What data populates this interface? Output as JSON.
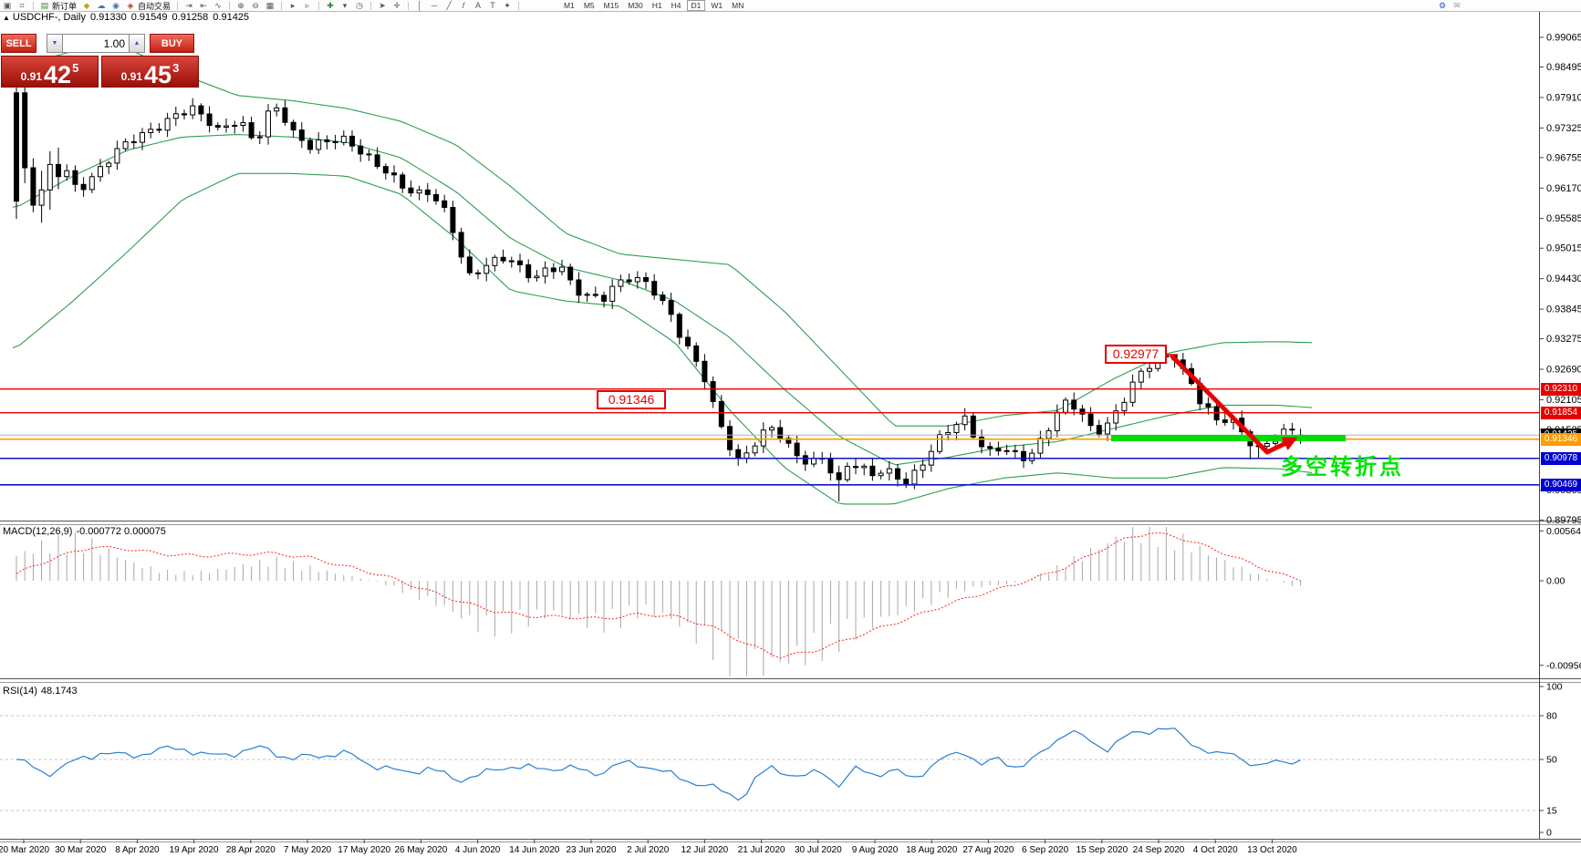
{
  "toolbar": {
    "items": [
      {
        "g": "▣",
        "n": "chart-windows-icon"
      },
      {
        "g": "⌗",
        "n": "magnifier-icon"
      },
      {
        "sep": 1
      },
      {
        "g": "▤",
        "n": "new-order-icon",
        "c": "#2e8b2e",
        "label": "新订单"
      },
      {
        "g": "◆",
        "n": "gold-icon",
        "c": "#c9a227"
      },
      {
        "g": "☁",
        "n": "cloud-upload-icon",
        "c": "#4a6fb5"
      },
      {
        "g": "◉",
        "n": "signal-icon",
        "c": "#4a6fb5"
      },
      {
        "g": "◈",
        "n": "auto-trading-icon",
        "c": "#b03a2e",
        "label": "自动交易"
      },
      {
        "sep": 1
      },
      {
        "g": "⇥",
        "n": "chart-shift-icon"
      },
      {
        "g": "⇤",
        "n": "chart-autoscroll-icon"
      },
      {
        "g": "∿",
        "n": "chart-mode-icon"
      },
      {
        "sep": 1
      },
      {
        "g": "⊕",
        "n": "zoom-in-icon"
      },
      {
        "g": "⊖",
        "n": "zoom-out-icon"
      },
      {
        "g": "▦",
        "n": "tile-windows-icon"
      },
      {
        "sep": 1
      },
      {
        "g": "▸",
        "n": "strategy-test-start-icon"
      },
      {
        "g": "▹",
        "n": "strategy-test-end-icon"
      },
      {
        "sep": 1
      },
      {
        "g": "✚",
        "n": "add-object-icon",
        "c": "#2e8b2e"
      },
      {
        "g": "▾",
        "n": "add-object-dropdown-icon"
      },
      {
        "g": "◷",
        "n": "period-clock-icon"
      },
      {
        "sep": 1
      },
      {
        "g": "➤",
        "n": "cursor-icon"
      },
      {
        "g": "✛",
        "n": "crosshair-icon"
      },
      {
        "sep": 1
      },
      {
        "g": "│",
        "n": "vertical-line-icon"
      },
      {
        "g": "─",
        "n": "horizontal-line-icon"
      },
      {
        "g": "╱",
        "n": "trendline-icon"
      },
      {
        "g": "𝑓",
        "n": "fibonacci-icon"
      },
      {
        "g": "A",
        "n": "text-icon"
      },
      {
        "g": "T",
        "n": "text-label-icon"
      },
      {
        "g": "✦",
        "n": "shapes-icon"
      },
      {
        "sep": 1
      }
    ],
    "timeframes": [
      "M1",
      "M5",
      "M15",
      "M30",
      "H1",
      "H4",
      "D1",
      "W1",
      "MN"
    ],
    "selected_timeframe": "D1",
    "right_icons": [
      {
        "g": "⚙",
        "n": "tools-icon",
        "c": "#2255cc"
      },
      {
        "g": "✉",
        "n": "chat-icon",
        "c": "#999999"
      }
    ]
  },
  "chart_header": {
    "collapse_arrow": "▲",
    "symbol": "USDCHF-, Daily",
    "open": "0.91330",
    "high": "0.91549",
    "low": "0.91258",
    "close": "0.91425"
  },
  "quick_trade": {
    "sell_label": "SELL",
    "buy_label": "BUY",
    "volume": "1.00",
    "spin_down": "▼",
    "spin_up": "▲",
    "sell_price": {
      "prefix": "0.91",
      "main": "42",
      "sup": "5"
    },
    "buy_price": {
      "prefix": "0.91",
      "main": "45",
      "sup": "3"
    }
  },
  "annotations": {
    "peak_price": "0.92977",
    "support_price": "0.91346",
    "turning_point": "多空转折点"
  },
  "price_axis": {
    "ticks": [
      "0.99065",
      "0.98495",
      "0.97910",
      "0.97325",
      "0.96755",
      "0.96170",
      "0.95585",
      "0.95015",
      "0.94430",
      "0.93845",
      "0.93275",
      "0.92690",
      "0.92105",
      "0.91525",
      "0.90365",
      "0.89795"
    ],
    "badges": [
      {
        "label": "0.92310",
        "color": "#e60000"
      },
      {
        "label": "0.91854",
        "color": "#e60000"
      },
      {
        "label": "0.91425",
        "color": "#000000"
      },
      {
        "label": "0.91346",
        "color": "#ff9c00"
      },
      {
        "label": "0.90978",
        "color": "#0000d0"
      },
      {
        "label": "0.90469",
        "color": "#0000d0"
      }
    ]
  },
  "macd": {
    "title": "MACD(12,26,9)",
    "values": "-0.000772 0.000075",
    "scale": [
      "0.00564",
      "0.00",
      "-0.009565"
    ]
  },
  "rsi": {
    "title": "RSI(14)",
    "value": "48.1743",
    "scale": [
      "100",
      "80",
      "50",
      "15",
      "0"
    ]
  },
  "date_axis": {
    "labels": [
      "20 Mar 2020",
      "30 Mar 2020",
      "8 Apr 2020",
      "19 Apr 2020",
      "28 Apr 2020",
      "7 May 2020",
      "17 May 2020",
      "26 May 2020",
      "4 Jun 2020",
      "14 Jun 2020",
      "23 Jun 2020",
      "2 Jul 2020",
      "12 Jul 2020",
      "21 Jul 2020",
      "30 Jul 2020",
      "9 Aug 2020",
      "18 Aug 2020",
      "27 Aug 2020",
      "6 Sep 2020",
      "15 Sep 2020",
      "24 Sep 2020",
      "4 Oct 2020",
      "13 Oct 2020"
    ]
  },
  "chart_data": {
    "type": "candlestick",
    "symbol": "USDCHF",
    "timeframe": "Daily",
    "current_bar": {
      "open": 0.9133,
      "high": 0.91549,
      "low": 0.91258,
      "close": 0.91425
    },
    "visible_price_range": [
      0.89795,
      0.99575
    ],
    "levels": {
      "resistance_red": [
        0.9231,
        0.91854
      ],
      "support_orange": 0.91346,
      "support_blue": [
        0.90978,
        0.90469
      ],
      "swing_high": 0.92977,
      "last_price": 0.91425
    },
    "indicators": {
      "bollinger_period": 20,
      "macd": {
        "fast": 12,
        "slow": 26,
        "signal": 9,
        "current_macd": -0.000772,
        "current_signal": 7.5e-05
      },
      "rsi": {
        "period": 14,
        "current": 48.1743
      }
    },
    "price_anchors": [
      [
        18,
        0.98
      ],
      [
        28,
        0.962
      ],
      [
        40,
        0.9575
      ],
      [
        55,
        0.964
      ],
      [
        70,
        0.966
      ],
      [
        85,
        0.9615
      ],
      [
        100,
        0.964
      ],
      [
        115,
        0.9665
      ],
      [
        130,
        0.969
      ],
      [
        150,
        0.971
      ],
      [
        170,
        0.973
      ],
      [
        190,
        0.976
      ],
      [
        210,
        0.9775
      ],
      [
        225,
        0.975
      ],
      [
        240,
        0.9722
      ],
      [
        262,
        0.9745
      ],
      [
        280,
        0.9705
      ],
      [
        295,
        0.9768
      ],
      [
        305,
        0.9778
      ],
      [
        320,
        0.9725
      ],
      [
        340,
        0.9692
      ],
      [
        360,
        0.9705
      ],
      [
        380,
        0.9712
      ],
      [
        400,
        0.9685
      ],
      [
        420,
        0.9655
      ],
      [
        440,
        0.9618
      ],
      [
        455,
        0.96
      ],
      [
        470,
        0.9608
      ],
      [
        485,
        0.9585
      ],
      [
        500,
        0.9528
      ],
      [
        512,
        0.9448
      ],
      [
        525,
        0.946
      ],
      [
        540,
        0.9472
      ],
      [
        555,
        0.948
      ],
      [
        570,
        0.9462
      ],
      [
        585,
        0.9446
      ],
      [
        600,
        0.9466
      ],
      [
        615,
        0.947
      ],
      [
        630,
        0.942
      ],
      [
        645,
        0.9405
      ],
      [
        660,
        0.9398
      ],
      [
        675,
        0.9432
      ],
      [
        690,
        0.9448
      ],
      [
        705,
        0.9445
      ],
      [
        720,
        0.9416
      ],
      [
        735,
        0.9372
      ],
      [
        748,
        0.932
      ],
      [
        760,
        0.9288
      ],
      [
        772,
        0.9252
      ],
      [
        785,
        0.9185
      ],
      [
        798,
        0.9132
      ],
      [
        810,
        0.9095
      ],
      [
        822,
        0.9118
      ],
      [
        835,
        0.9142
      ],
      [
        848,
        0.9155
      ],
      [
        862,
        0.912
      ],
      [
        875,
        0.91
      ],
      [
        888,
        0.9088
      ],
      [
        900,
        0.9108
      ],
      [
        912,
        0.9075
      ],
      [
        920,
        0.9052
      ],
      [
        930,
        0.909
      ],
      [
        942,
        0.9078
      ],
      [
        955,
        0.9062
      ],
      [
        968,
        0.907
      ],
      [
        980,
        0.9068
      ],
      [
        992,
        0.9052
      ],
      [
        1005,
        0.9078
      ],
      [
        1018,
        0.911
      ],
      [
        1032,
        0.9142
      ],
      [
        1046,
        0.9158
      ],
      [
        1058,
        0.9168
      ],
      [
        1070,
        0.913
      ],
      [
        1082,
        0.9108
      ],
      [
        1095,
        0.9122
      ],
      [
        1108,
        0.9115
      ],
      [
        1120,
        0.9102
      ],
      [
        1132,
        0.9108
      ],
      [
        1145,
        0.914
      ],
      [
        1158,
        0.9178
      ],
      [
        1170,
        0.9205
      ],
      [
        1182,
        0.9192
      ],
      [
        1195,
        0.916
      ],
      [
        1208,
        0.9155
      ],
      [
        1220,
        0.918
      ],
      [
        1232,
        0.9212
      ],
      [
        1245,
        0.9248
      ],
      [
        1258,
        0.927
      ],
      [
        1270,
        0.9285
      ],
      [
        1287,
        0.9296
      ],
      [
        1297,
        0.9268
      ],
      [
        1307,
        0.9242
      ],
      [
        1317,
        0.9208
      ],
      [
        1327,
        0.919
      ],
      [
        1337,
        0.9162
      ],
      [
        1347,
        0.9178
      ],
      [
        1357,
        0.9152
      ],
      [
        1367,
        0.9132
      ],
      [
        1377,
        0.9108
      ],
      [
        1387,
        0.9125
      ],
      [
        1397,
        0.9138
      ],
      [
        1407,
        0.9152
      ],
      [
        1417,
        0.916
      ],
      [
        1428,
        0.91425
      ]
    ],
    "bollinger_anchors": [
      [
        18,
        0.985,
        0.958,
        0.931
      ],
      [
        80,
        0.988,
        0.964,
        0.94
      ],
      [
        140,
        0.9885,
        0.969,
        0.9495
      ],
      [
        200,
        0.9835,
        0.9715,
        0.9595
      ],
      [
        260,
        0.9795,
        0.972,
        0.9645
      ],
      [
        320,
        0.9785,
        0.9715,
        0.9645
      ],
      [
        380,
        0.977,
        0.9705,
        0.964
      ],
      [
        440,
        0.9745,
        0.9675,
        0.9605
      ],
      [
        500,
        0.97,
        0.961,
        0.952
      ],
      [
        560,
        0.962,
        0.952,
        0.942
      ],
      [
        620,
        0.953,
        0.9465,
        0.94
      ],
      [
        680,
        0.949,
        0.944,
        0.939
      ],
      [
        740,
        0.948,
        0.94,
        0.932
      ],
      [
        800,
        0.947,
        0.933,
        0.919
      ],
      [
        860,
        0.938,
        0.923,
        0.908
      ],
      [
        920,
        0.927,
        0.914,
        0.901
      ],
      [
        980,
        0.916,
        0.9085,
        0.901
      ],
      [
        1040,
        0.916,
        0.91,
        0.904
      ],
      [
        1100,
        0.918,
        0.912,
        0.906
      ],
      [
        1160,
        0.919,
        0.913,
        0.907
      ],
      [
        1220,
        0.925,
        0.9155,
        0.906
      ],
      [
        1280,
        0.93,
        0.918,
        0.906
      ],
      [
        1340,
        0.932,
        0.92,
        0.908
      ],
      [
        1400,
        0.9322,
        0.92,
        0.9078
      ],
      [
        1440,
        0.932,
        0.9195,
        0.907
      ]
    ],
    "macd_hist_anchors": [
      [
        18,
        0.0028
      ],
      [
        50,
        0.004
      ],
      [
        90,
        0.0043
      ],
      [
        120,
        0.0032
      ],
      [
        150,
        0.0018
      ],
      [
        180,
        0.001
      ],
      [
        210,
        0.0008
      ],
      [
        240,
        0.0012
      ],
      [
        270,
        0.0018
      ],
      [
        300,
        0.0022
      ],
      [
        330,
        0.0016
      ],
      [
        360,
        0.001
      ],
      [
        390,
        0.0004
      ],
      [
        420,
        -0.0003
      ],
      [
        450,
        -0.0014
      ],
      [
        480,
        -0.0026
      ],
      [
        505,
        -0.004
      ],
      [
        530,
        -0.0052
      ],
      [
        555,
        -0.0048
      ],
      [
        580,
        -0.0042
      ],
      [
        605,
        -0.0036
      ],
      [
        630,
        -0.0042
      ],
      [
        655,
        -0.0048
      ],
      [
        680,
        -0.0042
      ],
      [
        705,
        -0.0032
      ],
      [
        730,
        -0.004
      ],
      [
        755,
        -0.0055
      ],
      [
        780,
        -0.007
      ],
      [
        805,
        -0.0088
      ],
      [
        830,
        -0.0096
      ],
      [
        855,
        -0.0092
      ],
      [
        880,
        -0.0082
      ],
      [
        905,
        -0.007
      ],
      [
        930,
        -0.0058
      ],
      [
        955,
        -0.0048
      ],
      [
        980,
        -0.0038
      ],
      [
        1005,
        -0.0028
      ],
      [
        1030,
        -0.0018
      ],
      [
        1055,
        -0.001
      ],
      [
        1080,
        -0.0006
      ],
      [
        1105,
        -0.0004
      ],
      [
        1130,
        0.0002
      ],
      [
        1155,
        0.0012
      ],
      [
        1180,
        0.0024
      ],
      [
        1205,
        0.0038
      ],
      [
        1230,
        0.005
      ],
      [
        1255,
        0.0056
      ],
      [
        1280,
        0.005
      ],
      [
        1305,
        0.004
      ],
      [
        1330,
        0.0028
      ],
      [
        1355,
        0.0016
      ],
      [
        1380,
        0.0006
      ],
      [
        1405,
        -0.0002
      ],
      [
        1428,
        -0.00077
      ]
    ],
    "macd_signal_anchors": [
      [
        18,
        0.0008
      ],
      [
        60,
        0.0026
      ],
      [
        100,
        0.0038
      ],
      [
        140,
        0.0036
      ],
      [
        180,
        0.003
      ],
      [
        220,
        0.0028
      ],
      [
        260,
        0.003
      ],
      [
        300,
        0.0031
      ],
      [
        340,
        0.0026
      ],
      [
        380,
        0.0016
      ],
      [
        420,
        0.0006
      ],
      [
        460,
        -0.0008
      ],
      [
        500,
        -0.0022
      ],
      [
        540,
        -0.0034
      ],
      [
        580,
        -0.004
      ],
      [
        620,
        -0.0041
      ],
      [
        660,
        -0.0043
      ],
      [
        700,
        -0.0038
      ],
      [
        740,
        -0.004
      ],
      [
        780,
        -0.0052
      ],
      [
        820,
        -0.0072
      ],
      [
        855,
        -0.0086
      ],
      [
        890,
        -0.008
      ],
      [
        925,
        -0.0068
      ],
      [
        960,
        -0.0055
      ],
      [
        995,
        -0.0043
      ],
      [
        1030,
        -0.003
      ],
      [
        1065,
        -0.0018
      ],
      [
        1100,
        -0.0008
      ],
      [
        1135,
        0.0003
      ],
      [
        1170,
        0.0016
      ],
      [
        1205,
        0.0034
      ],
      [
        1235,
        0.0048
      ],
      [
        1260,
        0.0054
      ],
      [
        1285,
        0.0051
      ],
      [
        1310,
        0.0043
      ],
      [
        1335,
        0.0034
      ],
      [
        1360,
        0.0024
      ],
      [
        1385,
        0.0014
      ],
      [
        1410,
        0.0005
      ],
      [
        1428,
        7.5e-05
      ]
    ],
    "rsi_anchors": [
      [
        18,
        50
      ],
      [
        50,
        40
      ],
      [
        80,
        48
      ],
      [
        110,
        55
      ],
      [
        140,
        52
      ],
      [
        170,
        56
      ],
      [
        200,
        58
      ],
      [
        230,
        52
      ],
      [
        260,
        55
      ],
      [
        290,
        58
      ],
      [
        320,
        50
      ],
      [
        350,
        53
      ],
      [
        380,
        54
      ],
      [
        410,
        46
      ],
      [
        440,
        41
      ],
      [
        470,
        44
      ],
      [
        500,
        36
      ],
      [
        530,
        40
      ],
      [
        560,
        46
      ],
      [
        590,
        43
      ],
      [
        620,
        45
      ],
      [
        650,
        40
      ],
      [
        680,
        47
      ],
      [
        710,
        46
      ],
      [
        740,
        38
      ],
      [
        770,
        33
      ],
      [
        800,
        26
      ],
      [
        815,
        24
      ],
      [
        830,
        38
      ],
      [
        848,
        45
      ],
      [
        865,
        40
      ],
      [
        880,
        37
      ],
      [
        900,
        43
      ],
      [
        920,
        32
      ],
      [
        940,
        44
      ],
      [
        960,
        40
      ],
      [
        980,
        42
      ],
      [
        1000,
        37
      ],
      [
        1020,
        45
      ],
      [
        1040,
        52
      ],
      [
        1058,
        56
      ],
      [
        1075,
        46
      ],
      [
        1095,
        50
      ],
      [
        1115,
        45
      ],
      [
        1135,
        50
      ],
      [
        1155,
        62
      ],
      [
        1170,
        70
      ],
      [
        1185,
        66
      ],
      [
        1200,
        60
      ],
      [
        1215,
        58
      ],
      [
        1230,
        64
      ],
      [
        1245,
        68
      ],
      [
        1260,
        70
      ],
      [
        1275,
        72
      ],
      [
        1290,
        68
      ],
      [
        1305,
        62
      ],
      [
        1320,
        57
      ],
      [
        1335,
        52
      ],
      [
        1350,
        55
      ],
      [
        1365,
        50
      ],
      [
        1380,
        44
      ],
      [
        1395,
        48
      ],
      [
        1410,
        50
      ],
      [
        1428,
        48.17
      ]
    ]
  }
}
